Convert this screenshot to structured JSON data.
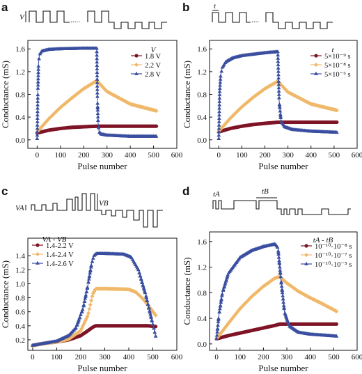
{
  "colors": {
    "c1": "#7e1526",
    "c2": "#f0b96a",
    "c3": "#3a4ea0"
  },
  "chart_data": [
    {
      "panel": "a",
      "type": "line",
      "xlabel": "Pulse number",
      "ylabel": "Conductance (mS)",
      "xlim": [
        -40,
        600
      ],
      "ylim": [
        -0.15,
        1.75
      ],
      "xticks": [
        0,
        100,
        200,
        300,
        400,
        500,
        600
      ],
      "yticks": [
        0.0,
        0.4,
        0.8,
        1.2,
        1.6
      ],
      "legend_title": "V",
      "legend_position": "right",
      "waveform_label": "V",
      "series": [
        {
          "name": "1.8 V",
          "color": "#7e1526",
          "x": [
            0,
            50,
            100,
            150,
            200,
            256,
            300,
            400,
            512
          ],
          "y": [
            0.12,
            0.17,
            0.2,
            0.22,
            0.23,
            0.24,
            0.24,
            0.24,
            0.24
          ]
        },
        {
          "name": "2.2 V",
          "color": "#f0b96a",
          "x": [
            0,
            50,
            100,
            150,
            200,
            256,
            300,
            400,
            512
          ],
          "y": [
            0.14,
            0.37,
            0.57,
            0.74,
            0.9,
            1.04,
            0.85,
            0.63,
            0.51
          ]
        },
        {
          "name": "2.8 V",
          "color": "#3a4ea0",
          "x": [
            0,
            3,
            6,
            10,
            20,
            50,
            100,
            200,
            256,
            259,
            262,
            266,
            275,
            300,
            400,
            512
          ],
          "y": [
            0.02,
            0.85,
            1.35,
            1.5,
            1.56,
            1.59,
            1.6,
            1.61,
            1.61,
            0.7,
            0.28,
            0.14,
            0.1,
            0.08,
            0.06,
            0.06
          ]
        }
      ]
    },
    {
      "panel": "b",
      "type": "line",
      "xlabel": "Pulse number",
      "ylabel": "Conductance (mS)",
      "xlim": [
        -40,
        600
      ],
      "ylim": [
        -0.15,
        1.75
      ],
      "xticks": [
        0,
        100,
        200,
        300,
        400,
        500,
        600
      ],
      "yticks": [
        0.0,
        0.4,
        0.8,
        1.2,
        1.6
      ],
      "legend_title": "t",
      "legend_position": "right",
      "waveform_label": "t",
      "series": [
        {
          "name": "5×10⁻⁹ s",
          "color": "#7e1526",
          "x": [
            0,
            50,
            100,
            150,
            200,
            256,
            300,
            400,
            512
          ],
          "y": [
            0.14,
            0.2,
            0.24,
            0.27,
            0.29,
            0.31,
            0.31,
            0.31,
            0.31
          ]
        },
        {
          "name": "5×10⁻⁸ s",
          "color": "#f0b96a",
          "x": [
            0,
            50,
            100,
            150,
            200,
            256,
            300,
            400,
            512
          ],
          "y": [
            0.15,
            0.38,
            0.58,
            0.75,
            0.9,
            1.03,
            0.84,
            0.63,
            0.52
          ]
        },
        {
          "name": "5×10⁻⁶ s",
          "color": "#3a4ea0",
          "x": [
            0,
            4,
            8,
            15,
            30,
            60,
            100,
            200,
            256,
            262,
            270,
            285,
            320,
            400,
            512
          ],
          "y": [
            0.02,
            0.85,
            1.12,
            1.27,
            1.37,
            1.44,
            1.48,
            1.53,
            1.55,
            0.68,
            0.33,
            0.23,
            0.18,
            0.15,
            0.13
          ]
        }
      ]
    },
    {
      "panel": "c",
      "type": "line",
      "xlabel": "Pulse number",
      "ylabel": "Conductance (mS)",
      "xlim": [
        -20,
        600
      ],
      "ylim": [
        0.05,
        1.65
      ],
      "xticks": [
        0,
        100,
        200,
        300,
        400,
        500,
        600
      ],
      "yticks": [
        0.2,
        0.4,
        0.6,
        0.8,
        1.0,
        1.2,
        1.4
      ],
      "legend_title": "VA - VB",
      "legend_position": "top-left",
      "waveform_labels": [
        "VA",
        "VB"
      ],
      "series": [
        {
          "name": "1.4-2.2 V",
          "color": "#7e1526",
          "x": [
            0,
            50,
            100,
            150,
            200,
            230,
            250,
            262,
            300,
            400,
            480,
            512
          ],
          "y": [
            0.12,
            0.15,
            0.17,
            0.2,
            0.26,
            0.33,
            0.38,
            0.4,
            0.4,
            0.4,
            0.4,
            0.39
          ]
        },
        {
          "name": "1.4-2.4 V",
          "color": "#f0b96a",
          "x": [
            0,
            50,
            100,
            150,
            200,
            230,
            250,
            262,
            300,
            400,
            430,
            460,
            490,
            512
          ],
          "y": [
            0.12,
            0.15,
            0.17,
            0.21,
            0.33,
            0.55,
            0.85,
            0.93,
            0.93,
            0.92,
            0.88,
            0.78,
            0.65,
            0.55
          ]
        },
        {
          "name": "1.4-2.6 V",
          "color": "#3a4ea0",
          "x": [
            0,
            50,
            100,
            150,
            180,
            210,
            230,
            245,
            255,
            265,
            300,
            380,
            410,
            440,
            470,
            500,
            512
          ],
          "y": [
            0.12,
            0.15,
            0.18,
            0.26,
            0.37,
            0.65,
            0.98,
            1.28,
            1.4,
            1.43,
            1.43,
            1.42,
            1.38,
            1.2,
            0.85,
            0.42,
            0.25
          ]
        }
      ]
    },
    {
      "panel": "d",
      "type": "line",
      "xlabel": "Pulse number",
      "ylabel": "Conductance (mS)",
      "xlim": [
        -30,
        600
      ],
      "ylim": [
        -0.1,
        1.75
      ],
      "xticks": [
        0,
        100,
        200,
        300,
        400,
        500,
        600
      ],
      "yticks": [
        0.0,
        0.4,
        0.8,
        1.2,
        1.6
      ],
      "legend_title": "tA - tB",
      "legend_position": "right",
      "waveform_labels": [
        "tA",
        "tB"
      ],
      "series": [
        {
          "name": "10⁻¹⁰-10⁻⁸ s",
          "color": "#7e1526",
          "x": [
            0,
            50,
            100,
            150,
            200,
            250,
            270,
            300,
            400,
            512
          ],
          "y": [
            0.08,
            0.13,
            0.17,
            0.21,
            0.25,
            0.29,
            0.31,
            0.31,
            0.31,
            0.31
          ]
        },
        {
          "name": "10⁻¹⁰-10⁻⁷ s",
          "color": "#f0b96a",
          "x": [
            0,
            50,
            100,
            150,
            200,
            250,
            270,
            300,
            350,
            400,
            450,
            512
          ],
          "y": [
            0.08,
            0.32,
            0.55,
            0.74,
            0.9,
            1.03,
            1.05,
            0.95,
            0.82,
            0.72,
            0.63,
            0.51
          ]
        },
        {
          "name": "10⁻¹⁰-10⁻⁵ s",
          "color": "#3a4ea0",
          "x": [
            0,
            10,
            25,
            50,
            100,
            150,
            200,
            250,
            262,
            275,
            290,
            310,
            350,
            400,
            512
          ],
          "y": [
            0.08,
            0.45,
            0.8,
            1.1,
            1.35,
            1.46,
            1.52,
            1.56,
            1.5,
            1.0,
            0.5,
            0.28,
            0.18,
            0.15,
            0.12
          ]
        }
      ]
    }
  ]
}
